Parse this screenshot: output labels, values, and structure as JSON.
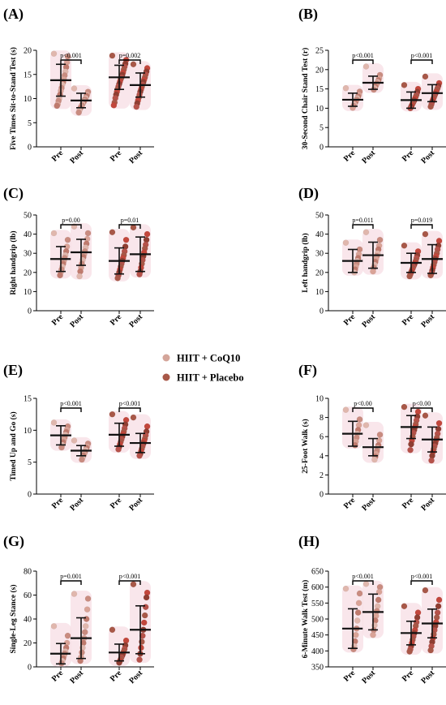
{
  "figure": {
    "legend": [
      {
        "label": "HIIT + CoQ10",
        "color": "#d4a59a"
      },
      {
        "label": "HIIT + Placebo",
        "color": "#a85848"
      }
    ]
  },
  "chart_data": [
    {
      "id": "A",
      "panel_label": "(A)",
      "type": "scatter",
      "ylabel": "Five Times Sit-to-Stand Test (s)",
      "ylim": [
        0,
        20
      ],
      "yticks": [
        0,
        5,
        10,
        15,
        20
      ],
      "categories": [
        "Pre",
        "Post",
        "Pre",
        "Post"
      ],
      "groups": [
        "HIIT + CoQ10",
        "HIIT + CoQ10",
        "HIIT + Placebo",
        "HIIT + Placebo"
      ],
      "summary": [
        {
          "mean": 13.8,
          "sd": 3.3
        },
        {
          "mean": 9.6,
          "sd": 1.5
        },
        {
          "mean": 14.4,
          "sd": 2.5
        },
        {
          "mean": 12.8,
          "sd": 2.5
        }
      ],
      "points": [
        [
          19.3,
          18.7,
          17.5,
          16.5,
          15.6,
          14.8,
          14.0,
          13.4,
          12.9,
          12.2,
          11.6,
          10.8,
          10.0,
          9.5,
          8.8,
          8.5
        ],
        [
          12.1,
          11.4,
          10.9,
          10.5,
          10.1,
          9.8,
          9.5,
          9.2,
          8.9,
          8.6,
          8.3,
          8.0,
          7.6,
          7.1
        ],
        [
          18.9,
          18.0,
          17.2,
          16.6,
          16.0,
          15.4,
          14.9,
          14.4,
          14.0,
          13.5,
          13.0,
          12.5,
          12.0,
          11.4,
          10.8,
          10.1,
          9.2,
          8.6
        ],
        [
          17.1,
          16.3,
          15.6,
          15.0,
          14.4,
          13.9,
          13.4,
          12.9,
          12.4,
          11.9,
          11.4,
          10.8,
          10.2,
          9.6,
          9.0,
          8.3
        ]
      ],
      "comparisons": [
        {
          "from": 0,
          "to": 1,
          "label": "p<0.001"
        },
        {
          "from": 2,
          "to": 3,
          "label": "p=0.002"
        }
      ]
    },
    {
      "id": "B",
      "panel_label": "(B)",
      "type": "scatter",
      "ylabel": "30-Second Chair Stand Test (r)",
      "ylim": [
        0,
        25
      ],
      "yticks": [
        0,
        5,
        10,
        15,
        20,
        25
      ],
      "categories": [
        "Pre",
        "Post",
        "Pre",
        "Post"
      ],
      "groups": [
        "HIIT + CoQ10",
        "HIIT + CoQ10",
        "HIIT + Placebo",
        "HIIT + Placebo"
      ],
      "summary": [
        {
          "mean": 12.2,
          "sd": 1.7
        },
        {
          "mean": 16.6,
          "sd": 1.7
        },
        {
          "mean": 12.1,
          "sd": 2.1
        },
        {
          "mean": 13.9,
          "sd": 2.2
        }
      ],
      "points": [
        [
          15.2,
          14.3,
          13.5,
          13.0,
          12.6,
          12.2,
          11.8,
          11.4,
          11.0,
          10.6,
          10.1
        ],
        [
          20.8,
          18.6,
          17.8,
          17.2,
          16.8,
          16.4,
          16.0,
          15.6,
          15.2,
          14.8
        ],
        [
          16.0,
          15.0,
          14.2,
          13.5,
          13.0,
          12.5,
          12.0,
          11.6,
          11.2,
          10.8,
          10.4,
          10.0
        ],
        [
          18.2,
          16.5,
          15.8,
          15.2,
          14.7,
          14.2,
          13.7,
          13.2,
          12.7,
          12.2,
          11.7,
          11.0,
          10.4
        ]
      ],
      "comparisons": [
        {
          "from": 0,
          "to": 1,
          "label": "p<0.001"
        },
        {
          "from": 2,
          "to": 3,
          "label": "p<0.001"
        }
      ]
    },
    {
      "id": "C",
      "panel_label": "(C)",
      "type": "scatter",
      "ylabel": "Right handgrip (lb)",
      "ylim": [
        0,
        50
      ],
      "yticks": [
        0,
        10,
        20,
        30,
        40,
        50
      ],
      "categories": [
        "Pre",
        "Post",
        "Pre",
        "Post"
      ],
      "groups": [
        "HIIT + CoQ10",
        "HIIT + CoQ10",
        "HIIT + Placebo",
        "HIIT + Placebo"
      ],
      "summary": [
        {
          "mean": 27.0,
          "sd": 6.5
        },
        {
          "mean": 30.5,
          "sd": 6.8
        },
        {
          "mean": 26.0,
          "sd": 6.8
        },
        {
          "mean": 29.5,
          "sd": 9.0
        }
      ],
      "points": [
        [
          40.5,
          37.0,
          33.5,
          31.0,
          29.0,
          27.5,
          26.0,
          24.5,
          23.0,
          21.5,
          20.0,
          18.5
        ],
        [
          44.0,
          40.5,
          37.5,
          35.0,
          33.0,
          31.0,
          29.5,
          28.0,
          26.5,
          24.5,
          22.5,
          20.5,
          18.0
        ],
        [
          41.0,
          37.0,
          33.5,
          31.0,
          29.0,
          27.5,
          26.0,
          24.5,
          23.0,
          21.5,
          20.0,
          18.5,
          17.0
        ],
        [
          43.5,
          40.0,
          37.0,
          34.5,
          32.5,
          30.5,
          28.5,
          26.5,
          24.5,
          22.5,
          20.5,
          19.0
        ]
      ],
      "comparisons": [
        {
          "from": 0,
          "to": 1,
          "label": "p=0.00"
        },
        {
          "from": 2,
          "to": 3,
          "label": "p=0.01"
        }
      ]
    },
    {
      "id": "D",
      "panel_label": "(D)",
      "type": "scatter",
      "ylabel": "Left handgrip (lb)",
      "ylim": [
        0,
        50
      ],
      "yticks": [
        0,
        10,
        20,
        30,
        40,
        50
      ],
      "categories": [
        "Pre",
        "Post",
        "Pre",
        "Post"
      ],
      "groups": [
        "HIIT + CoQ10",
        "HIIT + CoQ10",
        "HIIT + Placebo",
        "HIIT + Placebo"
      ],
      "summary": [
        {
          "mean": 26.0,
          "sd": 6.0
        },
        {
          "mean": 29.0,
          "sd": 6.8
        },
        {
          "mean": 25.0,
          "sd": 5.0
        },
        {
          "mean": 27.0,
          "sd": 7.5
        }
      ],
      "points": [
        [
          35.5,
          32.0,
          29.5,
          27.5,
          26.0,
          24.5,
          23.0,
          21.5,
          20.0
        ],
        [
          41.0,
          37.0,
          34.0,
          32.0,
          30.0,
          28.5,
          27.0,
          25.5,
          24.0,
          22.5,
          20.5
        ],
        [
          34.0,
          31.0,
          29.0,
          27.5,
          26.0,
          25.0,
          24.0,
          23.0,
          22.0,
          21.0,
          20.0,
          19.0,
          18.0
        ],
        [
          40.0,
          36.5,
          34.0,
          32.0,
          30.0,
          28.5,
          27.0,
          25.5,
          24.0,
          22.5,
          21.0,
          19.5,
          18.5
        ]
      ],
      "comparisons": [
        {
          "from": 0,
          "to": 1,
          "label": "p=0.011"
        },
        {
          "from": 2,
          "to": 3,
          "label": "p=0.019"
        }
      ]
    },
    {
      "id": "E",
      "panel_label": "(E)",
      "type": "scatter",
      "ylabel": "Timed Up and Go (s)",
      "ylim": [
        0,
        15
      ],
      "yticks": [
        0,
        5,
        10,
        15
      ],
      "categories": [
        "Pre",
        "Post",
        "Pre",
        "Post"
      ],
      "groups": [
        "HIIT + CoQ10",
        "HIIT + CoQ10",
        "HIIT + Placebo",
        "HIIT + Placebo"
      ],
      "summary": [
        {
          "mean": 9.2,
          "sd": 1.5
        },
        {
          "mean": 6.8,
          "sd": 0.8
        },
        {
          "mean": 9.3,
          "sd": 1.8
        },
        {
          "mean": 8.0,
          "sd": 1.5
        }
      ],
      "points": [
        [
          11.2,
          10.6,
          10.1,
          9.7,
          9.3,
          8.9,
          8.5,
          8.1,
          7.7,
          7.3
        ],
        [
          8.4,
          7.9,
          7.5,
          7.2,
          6.9,
          6.6,
          6.3,
          6.0,
          5.7,
          5.4
        ],
        [
          12.5,
          11.6,
          10.9,
          10.3,
          9.8,
          9.4,
          9.0,
          8.6,
          8.2,
          7.8,
          7.4,
          7.0
        ],
        [
          12.0,
          10.6,
          9.8,
          9.2,
          8.7,
          8.3,
          7.9,
          7.5,
          7.1,
          6.7,
          6.3,
          6.0
        ]
      ],
      "comparisons": [
        {
          "from": 0,
          "to": 1,
          "label": "p<0.001"
        },
        {
          "from": 2,
          "to": 3,
          "label": "p<0.001"
        }
      ]
    },
    {
      "id": "F",
      "panel_label": "(F)",
      "type": "scatter",
      "ylabel": "25-Foot Walk (s)",
      "ylim": [
        0,
        10
      ],
      "yticks": [
        0,
        2,
        4,
        6,
        8,
        10
      ],
      "categories": [
        "Pre",
        "Post",
        "Pre",
        "Post"
      ],
      "groups": [
        "HIIT + CoQ10",
        "HIIT + CoQ10",
        "HIIT + Placebo",
        "HIIT + Placebo"
      ],
      "summary": [
        {
          "mean": 6.3,
          "sd": 1.3
        },
        {
          "mean": 4.9,
          "sd": 0.9
        },
        {
          "mean": 7.0,
          "sd": 1.2
        },
        {
          "mean": 5.7,
          "sd": 1.3
        }
      ],
      "points": [
        [
          8.8,
          7.8,
          7.2,
          6.7,
          6.3,
          5.9,
          5.5,
          5.1
        ],
        [
          7.2,
          6.2,
          5.6,
          5.1,
          4.8,
          4.5,
          4.2,
          3.9,
          3.6
        ],
        [
          9.1,
          8.6,
          8.1,
          7.7,
          7.3,
          7.0,
          6.7,
          6.4,
          6.0,
          5.6,
          5.2,
          4.6
        ],
        [
          8.2,
          7.4,
          6.8,
          6.3,
          5.9,
          5.6,
          5.3,
          5.0,
          4.7,
          4.4,
          4.0,
          3.5
        ]
      ],
      "comparisons": [
        {
          "from": 0,
          "to": 1,
          "label": "p<0.00"
        },
        {
          "from": 2,
          "to": 3,
          "label": "p<0.00"
        }
      ]
    },
    {
      "id": "G",
      "panel_label": "(G)",
      "type": "scatter",
      "ylabel": "Single-Leg Stance (s)",
      "ylim": [
        0,
        80
      ],
      "yticks": [
        0,
        20,
        40,
        60,
        80
      ],
      "categories": [
        "Pre",
        "Post",
        "Pre",
        "Post"
      ],
      "groups": [
        "HIIT + CoQ10",
        "HIIT + CoQ10",
        "HIIT + Placebo",
        "HIIT + Placebo"
      ],
      "summary": [
        {
          "mean": 11.0,
          "sd": 8.5
        },
        {
          "mean": 24.0,
          "sd": 17.0
        },
        {
          "mean": 12.0,
          "sd": 7.0
        },
        {
          "mean": 31.0,
          "sd": 20.0
        }
      ],
      "points": [
        [
          34.0,
          26.0,
          20.0,
          16.0,
          13.0,
          11.0,
          9.0,
          7.0,
          5.0,
          3.0
        ],
        [
          61.0,
          57.0,
          48.0,
          40.0,
          34.0,
          29.0,
          24.0,
          20.0,
          16.0,
          12.0,
          8.0,
          5.0
        ],
        [
          31.0,
          22.0,
          18.0,
          15.0,
          13.0,
          11.0,
          9.5,
          8.0,
          6.5,
          5.0,
          3.5
        ],
        [
          69.0,
          62.0,
          58.0,
          50.0,
          43.0,
          37.0,
          31.0,
          26.0,
          21.0,
          16.0,
          11.0,
          6.0
        ]
      ],
      "comparisons": [
        {
          "from": 0,
          "to": 1,
          "label": "p=0.001"
        },
        {
          "from": 2,
          "to": 3,
          "label": "p<0.001"
        }
      ]
    },
    {
      "id": "H",
      "panel_label": "(H)",
      "type": "scatter",
      "ylabel": "6-Minute Walk Test (m)",
      "ylim": [
        350,
        650
      ],
      "yticks": [
        350,
        400,
        450,
        500,
        550,
        600,
        650
      ],
      "categories": [
        "Pre",
        "Post",
        "Pre",
        "Post"
      ],
      "groups": [
        "HIIT + CoQ10",
        "HIIT + CoQ10",
        "HIIT + Placebo",
        "HIIT + Placebo"
      ],
      "summary": [
        {
          "mean": 470,
          "sd": 62
        },
        {
          "mean": 522,
          "sd": 56
        },
        {
          "mean": 456,
          "sd": 37
        },
        {
          "mean": 486,
          "sd": 45
        }
      ],
      "points": [
        [
          595,
          580,
          550,
          520,
          495,
          470,
          450,
          430,
          415,
          405
        ],
        [
          610,
          600,
          585,
          560,
          540,
          525,
          510,
          495,
          480,
          465,
          450
        ],
        [
          540,
          520,
          505,
          490,
          478,
          465,
          455,
          445,
          435,
          425,
          415,
          405,
          398
        ],
        [
          590,
          560,
          540,
          520,
          505,
          490,
          478,
          465,
          452,
          440,
          428,
          415,
          402
        ]
      ],
      "comparisons": [
        {
          "from": 0,
          "to": 1,
          "label": "p<0.001"
        },
        {
          "from": 2,
          "to": 3,
          "label": "p<0.001"
        }
      ]
    }
  ]
}
